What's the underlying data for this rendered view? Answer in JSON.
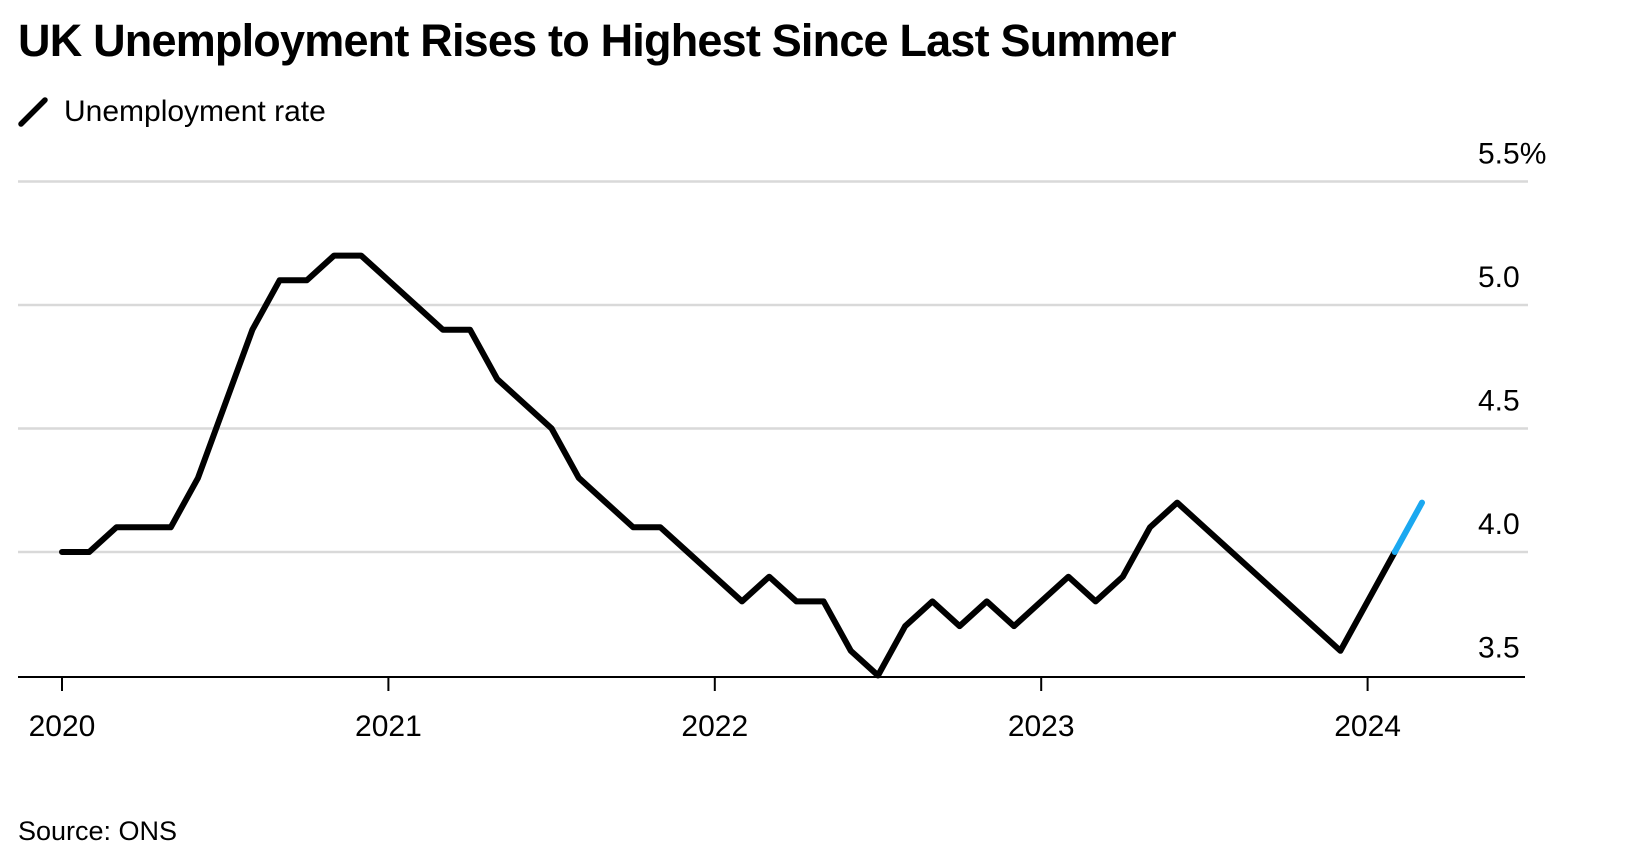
{
  "chart_data": {
    "type": "line",
    "title": "UK Unemployment Rises to Highest Since Last Summer",
    "legend_position": "top-left",
    "grid": true,
    "source": "Source: ONS",
    "colors": {
      "line": "#000000",
      "highlight": "#1ba8f0",
      "grid": "#d9d9d9",
      "axis": "#000000"
    },
    "x_ticks": [
      "2020",
      "2021",
      "2022",
      "2023",
      "2024"
    ],
    "y_ticks": [
      "3.5",
      "4.0",
      "4.5",
      "5.0",
      "5.5%"
    ],
    "ylim": [
      3.4,
      5.5
    ],
    "xlim": [
      "2020-01",
      "2024-06"
    ],
    "series": [
      {
        "name": "Unemployment rate",
        "x": [
          "2020-01",
          "2020-02",
          "2020-03",
          "2020-04",
          "2020-05",
          "2020-06",
          "2020-07",
          "2020-08",
          "2020-09",
          "2020-10",
          "2020-11",
          "2020-12",
          "2021-01",
          "2021-02",
          "2021-03",
          "2021-04",
          "2021-05",
          "2021-06",
          "2021-07",
          "2021-08",
          "2021-09",
          "2021-10",
          "2021-11",
          "2021-12",
          "2022-01",
          "2022-02",
          "2022-03",
          "2022-04",
          "2022-05",
          "2022-06",
          "2022-07",
          "2022-08",
          "2022-09",
          "2022-10",
          "2022-11",
          "2022-12",
          "2023-01",
          "2023-02",
          "2023-03",
          "2023-04",
          "2023-05",
          "2023-06",
          "2023-07",
          "2023-08",
          "2023-09",
          "2023-10",
          "2023-11",
          "2023-12",
          "2024-01",
          "2024-02",
          "2024-03"
        ],
        "values": [
          4.0,
          4.0,
          4.1,
          4.1,
          4.1,
          4.3,
          4.6,
          4.9,
          5.1,
          5.1,
          5.2,
          5.2,
          5.1,
          5.0,
          4.9,
          4.9,
          4.7,
          4.6,
          4.5,
          4.3,
          4.2,
          4.1,
          4.1,
          4.0,
          3.9,
          3.8,
          3.9,
          3.8,
          3.8,
          3.6,
          3.5,
          3.7,
          3.8,
          3.7,
          3.8,
          3.7,
          3.8,
          3.9,
          3.8,
          3.9,
          4.1,
          4.2,
          4.1,
          4.0,
          3.9,
          3.8,
          3.7,
          3.6,
          3.8,
          4.0,
          4.2
        ],
        "highlight_last": true
      }
    ]
  }
}
